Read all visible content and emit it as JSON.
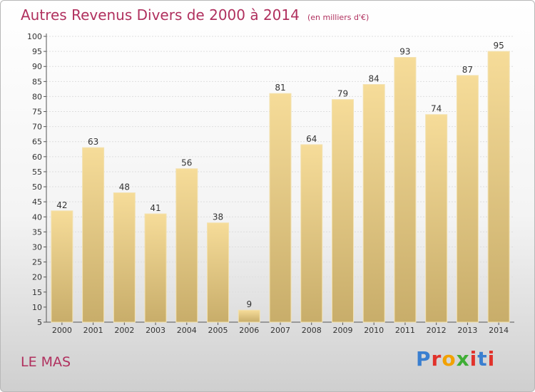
{
  "header": {
    "title": "Autres Revenus Divers de 2000 à 2014",
    "unit": "(en milliers d'€)"
  },
  "footer": {
    "place": "LE MAS"
  },
  "logo": {
    "text": "Proxiti",
    "letter_colors": [
      "#3a7fd0",
      "#e1322b",
      "#f2a100",
      "#3fae35",
      "#e1322b",
      "#3a7fd0",
      "#e1322b"
    ]
  },
  "chart_data": {
    "type": "bar",
    "categories": [
      "2000",
      "2001",
      "2002",
      "2003",
      "2004",
      "2005",
      "2006",
      "2007",
      "2008",
      "2009",
      "2010",
      "2011",
      "2012",
      "2013",
      "2014"
    ],
    "values": [
      42,
      63,
      48,
      41,
      56,
      38,
      9,
      81,
      64,
      79,
      84,
      93,
      74,
      87,
      95
    ],
    "ylim": [
      5,
      100
    ],
    "yticks": [
      5,
      10,
      15,
      20,
      25,
      30,
      35,
      40,
      45,
      50,
      55,
      60,
      65,
      70,
      75,
      80,
      85,
      90,
      95,
      100
    ],
    "grid": true,
    "bar_color": "#e8c97e"
  }
}
